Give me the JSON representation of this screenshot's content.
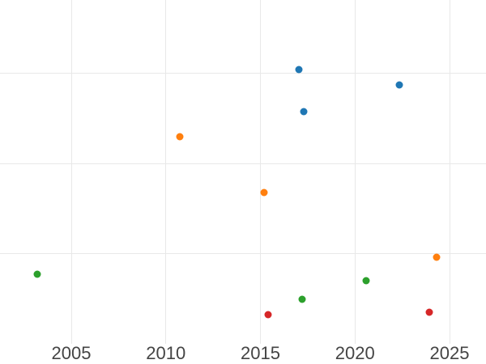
{
  "chart_data": {
    "type": "scatter",
    "title": "",
    "xlabel": "",
    "ylabel": "",
    "x_ticks": [
      2005,
      2010,
      2015,
      2020,
      2025
    ],
    "x_range": [
      2001.1,
      2026.9
    ],
    "y_gridline_units": [
      1,
      2,
      3
    ],
    "y_axis_note": "no visible y-axis tick labels; y values measured in gridline units from plot bottom",
    "grid": true,
    "legend_position": "none",
    "background_color": "#ffffff",
    "gridline_color": "#e8e8e8",
    "tick_label_color": "#444444",
    "marker_diameter_px": 9,
    "series": [
      {
        "name": "blue",
        "color": "#1f77b4",
        "points": [
          {
            "x": 2017.03,
            "y": 3.04
          },
          {
            "x": 2017.29,
            "y": 2.57
          },
          {
            "x": 2022.34,
            "y": 2.87
          }
        ]
      },
      {
        "name": "orange",
        "color": "#ff7f0e",
        "points": [
          {
            "x": 2010.74,
            "y": 2.3
          },
          {
            "x": 2015.19,
            "y": 1.68
          },
          {
            "x": 2024.31,
            "y": 0.96
          }
        ]
      },
      {
        "name": "green",
        "color": "#2ca02c",
        "points": [
          {
            "x": 2003.2,
            "y": 0.77
          },
          {
            "x": 2020.59,
            "y": 0.7
          },
          {
            "x": 2017.21,
            "y": 0.49
          }
        ]
      },
      {
        "name": "red",
        "color": "#d62728",
        "points": [
          {
            "x": 2015.4,
            "y": 0.32
          },
          {
            "x": 2023.93,
            "y": 0.35
          }
        ]
      }
    ]
  }
}
